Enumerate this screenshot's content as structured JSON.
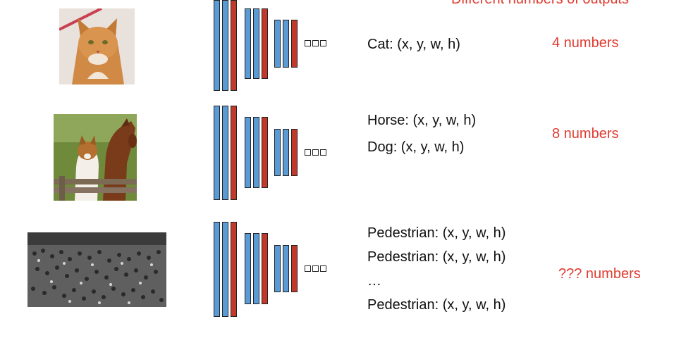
{
  "header_fragment": "Different numbers of outputs",
  "rows": [
    {
      "image_subject": "cat",
      "outputs": [
        "Cat: (x, y, w, h)"
      ],
      "count": "4 numbers"
    },
    {
      "image_subject": "dog and horse",
      "outputs": [
        "Horse: (x, y, w, h)",
        "Dog: (x, y, w, h)"
      ],
      "count": "8 numbers"
    },
    {
      "image_subject": "crowd of pedestrians",
      "outputs": [
        "Pedestrian: (x, y, w, h)",
        "Pedestrian: (x, y, w, h)",
        "…",
        "Pedestrian: (x, y, w, h)"
      ],
      "count": "??? numbers"
    }
  ],
  "colors": {
    "conv_blue": "#5b9bd5",
    "conv_red": "#c0392b",
    "accent_red": "#e03c31"
  }
}
